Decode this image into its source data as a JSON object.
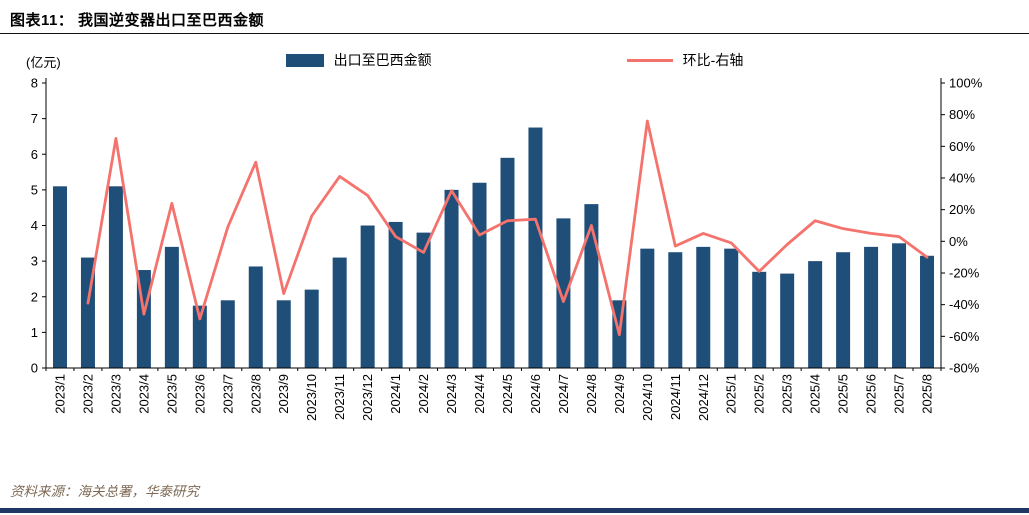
{
  "header": {
    "title": "图表11： 我国逆变器出口至巴西金额"
  },
  "footer": {
    "source": "资料来源：海关总署，华泰研究"
  },
  "colors": {
    "bar": "#1F4E79",
    "line": "#F4736D",
    "axis": "#000000",
    "bottom_rule": "#1F3864",
    "source_text": "#7E6A55"
  },
  "chart_data": {
    "type": "bar+line",
    "title": "我国逆变器出口至巴西金额",
    "unit_label": "(亿元)",
    "grid": false,
    "legend_position": "top",
    "legend": [
      {
        "label": "出口至巴西金额",
        "type": "bar",
        "color": "#1F4E79"
      },
      {
        "label": "环比-右轴",
        "type": "line",
        "color": "#F4736D"
      }
    ],
    "categories": [
      "2023/1",
      "2023/2",
      "2023/3",
      "2023/4",
      "2023/5",
      "2023/6",
      "2023/7",
      "2023/8",
      "2023/9",
      "2023/10",
      "2023/11",
      "2023/12",
      "2024/1",
      "2024/2",
      "2024/3",
      "2024/4",
      "2024/5",
      "2024/6",
      "2024/7",
      "2024/8",
      "2024/9",
      "2024/10",
      "2024/11",
      "2024/12",
      "2025/1",
      "2025/2",
      "2025/3",
      "2025/4",
      "2025/5",
      "2025/6",
      "2025/7",
      "2025/8"
    ],
    "series": [
      {
        "name": "出口至巴西金额",
        "axis": "left",
        "unit": "亿元",
        "values": [
          5.1,
          3.1,
          5.1,
          2.75,
          3.4,
          1.75,
          1.9,
          2.85,
          1.9,
          2.2,
          3.1,
          4.0,
          4.1,
          3.8,
          5.0,
          5.2,
          5.9,
          6.75,
          4.2,
          4.6,
          1.9,
          3.35,
          3.25,
          3.4,
          3.35,
          2.7,
          2.65,
          3.0,
          3.25,
          3.4,
          3.5,
          3.15
        ]
      },
      {
        "name": "环比-右轴",
        "axis": "right",
        "unit": "%",
        "values": [
          null,
          -39,
          65,
          -46,
          24,
          -49,
          9,
          50,
          -33,
          16,
          41,
          29,
          3,
          -7,
          32,
          4,
          13,
          14,
          -38,
          10,
          -59,
          76,
          -3,
          5,
          -1,
          -19,
          -2,
          13,
          8,
          5,
          3,
          -10
        ]
      }
    ],
    "left_axis": {
      "min": 0,
      "max": 8,
      "ticks": [
        0,
        1,
        2,
        3,
        4,
        5,
        6,
        7,
        8
      ]
    },
    "right_axis": {
      "min": -80,
      "max": 100,
      "ticks": [
        "100%",
        "80%",
        "60%",
        "40%",
        "20%",
        "0%",
        "-20%",
        "-40%",
        "-60%",
        "-80%"
      ]
    }
  }
}
